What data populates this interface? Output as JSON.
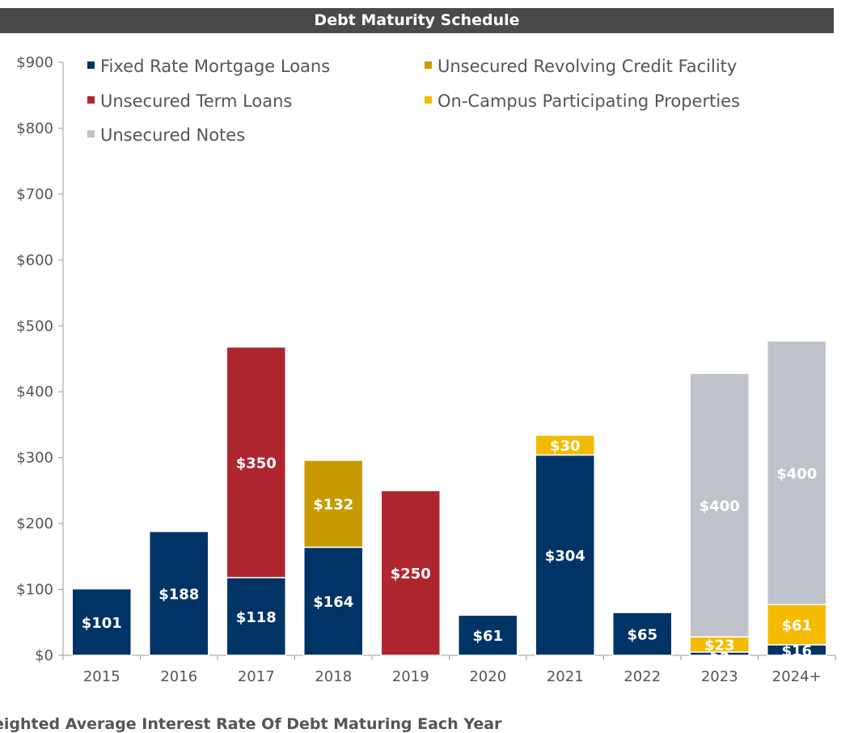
{
  "chart_data": {
    "type": "bar",
    "stacked": true,
    "title": "Debt Maturity Schedule",
    "categories": [
      "2015",
      "2016",
      "2017",
      "2018",
      "2019",
      "2020",
      "2021",
      "2022",
      "2023",
      "2024+"
    ],
    "series": [
      {
        "name": "Fixed Rate Mortgage Loans",
        "color": "#003366",
        "values": [
          101,
          188,
          118,
          164,
          0,
          61,
          304,
          65,
          5,
          16
        ]
      },
      {
        "name": "Unsecured Revolving Credit Facility",
        "color": "#c89a00",
        "values": [
          0,
          0,
          0,
          132,
          0,
          0,
          0,
          0,
          0,
          0
        ]
      },
      {
        "name": "Unsecured Term Loans",
        "color": "#b0262e",
        "values": [
          0,
          0,
          350,
          0,
          250,
          0,
          0,
          0,
          0,
          0
        ]
      },
      {
        "name": "On-Campus Participating Properties",
        "color": "#f5bb00",
        "values": [
          0,
          0,
          0,
          0,
          0,
          0,
          30,
          0,
          23,
          61
        ]
      },
      {
        "name": "Unsecured Notes",
        "color": "#c0c2cb",
        "values": [
          0,
          0,
          0,
          0,
          0,
          0,
          0,
          0,
          400,
          400
        ]
      }
    ],
    "data_labels": [
      [
        "$101",
        "",
        "",
        "",
        ""
      ],
      [
        "$188",
        "",
        "",
        "",
        ""
      ],
      [
        "$118",
        "",
        "$350",
        "",
        ""
      ],
      [
        "$164",
        "$132",
        "",
        "",
        ""
      ],
      [
        "",
        "",
        "$250",
        "",
        ""
      ],
      [
        "$61",
        "",
        "",
        "",
        ""
      ],
      [
        "$304",
        "",
        "",
        "$30",
        ""
      ],
      [
        "$65",
        "",
        "",
        "",
        ""
      ],
      [
        "$5",
        "",
        "",
        "$23",
        "$400"
      ],
      [
        "$16",
        "",
        "",
        "$61",
        "$400"
      ]
    ],
    "y_ticks": [
      "$0",
      "$100",
      "$200",
      "$300",
      "$400",
      "$500",
      "$600",
      "$700",
      "$800",
      "$900"
    ],
    "ylim": [
      0,
      900
    ],
    "legend_position": "top-left, inside plot",
    "grid": false
  },
  "footer_text": "eighted Average Interest Rate Of Debt Maturing Each Year"
}
